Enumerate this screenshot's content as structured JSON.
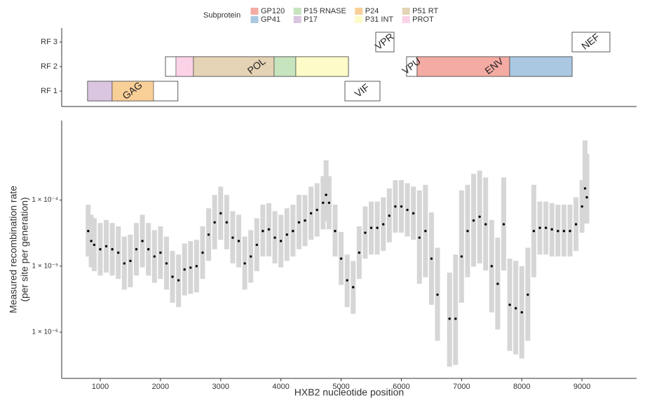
{
  "chart_data": [
    {
      "type": "genemap",
      "frames": [
        "RF 1",
        "RF 2",
        "RF 3"
      ],
      "xlim": [
        360,
        9906
      ],
      "legend": {
        "title": "Subprotein",
        "entries": [
          {
            "name": "GP120",
            "color": "#f4aba3"
          },
          {
            "name": "GP41",
            "color": "#abc8e2"
          },
          {
            "name": "P15 RNASE",
            "color": "#c6e4be"
          },
          {
            "name": "P17",
            "color": "#dac6e1"
          },
          {
            "name": "P24",
            "color": "#f9cf98"
          },
          {
            "name": "P31 INT",
            "color": "#fdfbc8"
          },
          {
            "name": "P51 RT",
            "color": "#e5d3b5"
          },
          {
            "name": "PROT",
            "color": "#fbd2e7"
          }
        ]
      },
      "segments": [
        {
          "subprotein": "P17",
          "frame": "RF 1",
          "start": 790,
          "end": 1198
        },
        {
          "subprotein": "P24",
          "frame": "RF 1",
          "start": 1198,
          "end": 1885
        },
        {
          "subprotein": "PROT",
          "frame": "RF 2",
          "start": 2257,
          "end": 2548
        },
        {
          "subprotein": "P51 RT",
          "frame": "RF 2",
          "start": 2548,
          "end": 3887
        },
        {
          "subprotein": "P15 RNASE",
          "frame": "RF 2",
          "start": 3887,
          "end": 4248
        },
        {
          "subprotein": "P31 INT",
          "frame": "RF 2",
          "start": 4248,
          "end": 5121
        },
        {
          "subprotein": "GP120",
          "frame": "RF 2",
          "start": 6262,
          "end": 7799
        },
        {
          "subprotein": "GP41",
          "frame": "RF 2",
          "start": 7799,
          "end": 8835
        }
      ],
      "genes": [
        {
          "label": "GAG",
          "frame": "RF 1",
          "start": 790,
          "end": 2290
        },
        {
          "label": "POL",
          "frame": "RF 2",
          "start": 2083,
          "end": 5121
        },
        {
          "label": "VIF",
          "frame": "RF 1",
          "start": 5063,
          "end": 5645
        },
        {
          "label": "VPR",
          "frame": "RF 3",
          "start": 5575,
          "end": 5878
        },
        {
          "label": "VPU",
          "frame": "RF 2",
          "start": 6087,
          "end": 6262
        },
        {
          "label": "ENV",
          "frame": "RF 2",
          "start": 6262,
          "end": 8835
        },
        {
          "label": "NEF",
          "frame": "RF 3",
          "start": 8835,
          "end": 9463
        }
      ]
    },
    {
      "type": "scatter",
      "x_label": "HXB2 nucleotide position",
      "y_label": [
        "Measured recombination rate",
        "(per site per generation)"
      ],
      "xlim": [
        360,
        9906
      ],
      "xticks": [
        1000,
        2000,
        3000,
        4000,
        5000,
        6000,
        7000,
        8000,
        9000
      ],
      "ylim": [
        2e-07,
        0.0016
      ],
      "log_y": true,
      "yticks": [
        {
          "value": 1e-06,
          "label": "1 × 10⁻⁶"
        },
        {
          "value": 1e-05,
          "label": "1 × 10⁻⁵"
        },
        {
          "value": 0.0001,
          "label": "1 × 10⁻⁴"
        }
      ],
      "x": [
        800,
        850,
        900,
        1000,
        1100,
        1200,
        1300,
        1400,
        1500,
        1600,
        1700,
        1800,
        1900,
        2000,
        2100,
        2200,
        2300,
        2400,
        2500,
        2600,
        2700,
        2800,
        2900,
        3000,
        3100,
        3200,
        3300,
        3400,
        3500,
        3600,
        3700,
        3800,
        3900,
        4000,
        4100,
        4200,
        4300,
        4400,
        4500,
        4600,
        4700,
        4750,
        4800,
        4900,
        5000,
        5100,
        5200,
        5300,
        5400,
        5500,
        5600,
        5700,
        5800,
        5900,
        6000,
        6100,
        6200,
        6300,
        6400,
        6500,
        6600,
        6800,
        6900,
        7000,
        7100,
        7200,
        7300,
        7400,
        7500,
        7600,
        7700,
        7800,
        7900,
        8000,
        8100,
        8200,
        8300,
        8400,
        8500,
        8600,
        8700,
        8800,
        8900,
        9000,
        9050,
        9080
      ],
      "series": [
        {
          "color": "#000000",
          "error_color": "#d6d6d6",
          "values": [
            3.4e-05,
            2.4e-05,
            2.1e-05,
            1.8e-05,
            2e-05,
            1.8e-05,
            1.6e-05,
            1.1e-05,
            1.2e-05,
            1.8e-05,
            2.4e-05,
            1.8e-05,
            1.4e-05,
            1.6e-05,
            1.1e-05,
            6.9e-06,
            6.1e-06,
            8.9e-06,
            9.5e-06,
            1e-05,
            1.6e-05,
            3e-05,
            4.6e-05,
            6.3e-05,
            4.6e-05,
            2.7e-05,
            2.4e-05,
            1.1e-05,
            1.4e-05,
            2.1e-05,
            3.4e-05,
            3.6e-05,
            2.7e-05,
            2.4e-05,
            3e-05,
            3.4e-05,
            4.6e-05,
            4.9e-05,
            6.3e-05,
            7.1e-05,
            9.1e-05,
            0.00012,
            9.1e-05,
            3.4e-05,
            1.3e-05,
            6.1e-06,
            4.8e-06,
            1.6e-05,
            3.2e-05,
            3.8e-05,
            3.8e-05,
            4.3e-05,
            5.8e-05,
            8e-05,
            8e-05,
            7.1e-05,
            6.3e-05,
            2.7e-05,
            3.4e-05,
            1.3e-05,
            3.7e-06,
            1.6e-06,
            1.6e-06,
            1.4e-05,
            3.4e-05,
            4.9e-05,
            5.6e-05,
            4.3e-05,
            1e-05,
            5.4e-06,
            4.3e-05,
            2.6e-06,
            2.3e-06,
            2e-06,
            3.7e-06,
            3.4e-05,
            3.8e-05,
            3.8e-05,
            3.6e-05,
            3.4e-05,
            3.4e-05,
            3.4e-05,
            4.3e-05,
            8e-05,
            0.00015,
            0.00011
          ],
          "lower": [
            1.4e-05,
            9.6e-06,
            8.4e-06,
            7.2e-06,
            8e-06,
            7.2e-06,
            6.4e-06,
            4.4e-06,
            4.8e-06,
            7.2e-06,
            9.6e-06,
            7.2e-06,
            5.6e-06,
            6.4e-06,
            4.4e-06,
            2.8e-06,
            2.4e-06,
            3.6e-06,
            3.8e-06,
            4e-06,
            6.4e-06,
            1.2e-05,
            1.8e-05,
            2.5e-05,
            1.8e-05,
            1.1e-05,
            9.6e-06,
            4.4e-06,
            5.6e-06,
            8.4e-06,
            1.4e-05,
            1.4e-05,
            1.1e-05,
            9.6e-06,
            1.2e-05,
            1.4e-05,
            1.8e-05,
            2e-05,
            2.5e-05,
            2.8e-05,
            3.6e-05,
            4.8e-05,
            3.6e-05,
            1.4e-05,
            5.2e-06,
            2.4e-06,
            1.9e-06,
            6.4e-06,
            1.3e-05,
            1.5e-05,
            1.5e-05,
            1.7e-05,
            2.3e-05,
            3.2e-05,
            3.2e-05,
            2.8e-05,
            2.5e-05,
            5.4e-06,
            6.8e-06,
            2.6e-06,
            7.4e-07,
            3e-07,
            3.2e-07,
            2.8e-06,
            6.8e-06,
            9.8e-06,
            1.1e-05,
            8.6e-06,
            2e-06,
            1.1e-06,
            8.6e-06,
            5.2e-07,
            4.6e-07,
            4e-07,
            7.4e-07,
            6.8e-06,
            1.5e-05,
            1.5e-05,
            1.4e-05,
            1.4e-05,
            1.4e-05,
            1.4e-05,
            1.7e-05,
            3.2e-05,
            6e-05,
            4.4e-05
          ],
          "upper": [
            8.5e-05,
            6e-05,
            5.3e-05,
            4.5e-05,
            5e-05,
            4.5e-05,
            4e-05,
            2.8e-05,
            3e-05,
            4.5e-05,
            6e-05,
            4.5e-05,
            3.5e-05,
            4e-05,
            2.8e-05,
            1.7e-05,
            1.5e-05,
            2.2e-05,
            2.4e-05,
            2.5e-05,
            4e-05,
            7.5e-05,
            0.00012,
            0.00016,
            0.00012,
            6.8e-05,
            6e-05,
            2.8e-05,
            3.5e-05,
            5.3e-05,
            8.5e-05,
            9e-05,
            6.8e-05,
            6e-05,
            7.5e-05,
            8.5e-05,
            0.00012,
            0.00012,
            0.00016,
            0.00018,
            0.00023,
            0.0004,
            0.00023,
            8.5e-05,
            3.3e-05,
            1.5e-05,
            1.2e-05,
            4e-05,
            8e-05,
            9.5e-05,
            9.5e-05,
            0.00011,
            0.00015,
            0.0002,
            0.0002,
            0.00018,
            0.00016,
            0.00014,
            0.00017,
            6.5e-05,
            1.9e-05,
            8e-06,
            1.5e-05,
            0.00014,
            0.00017,
            0.00025,
            0.00028,
            0.00022,
            5e-05,
            2.7e-05,
            0.00022,
            1.3e-05,
            1.2e-05,
            1e-05,
            1.9e-05,
            0.00017,
            9.5e-05,
            9.5e-05,
            9e-05,
            8.5e-05,
            8.5e-05,
            8.5e-05,
            0.00011,
            0.0002,
            0.0008,
            0.0005
          ]
        }
      ]
    }
  ]
}
